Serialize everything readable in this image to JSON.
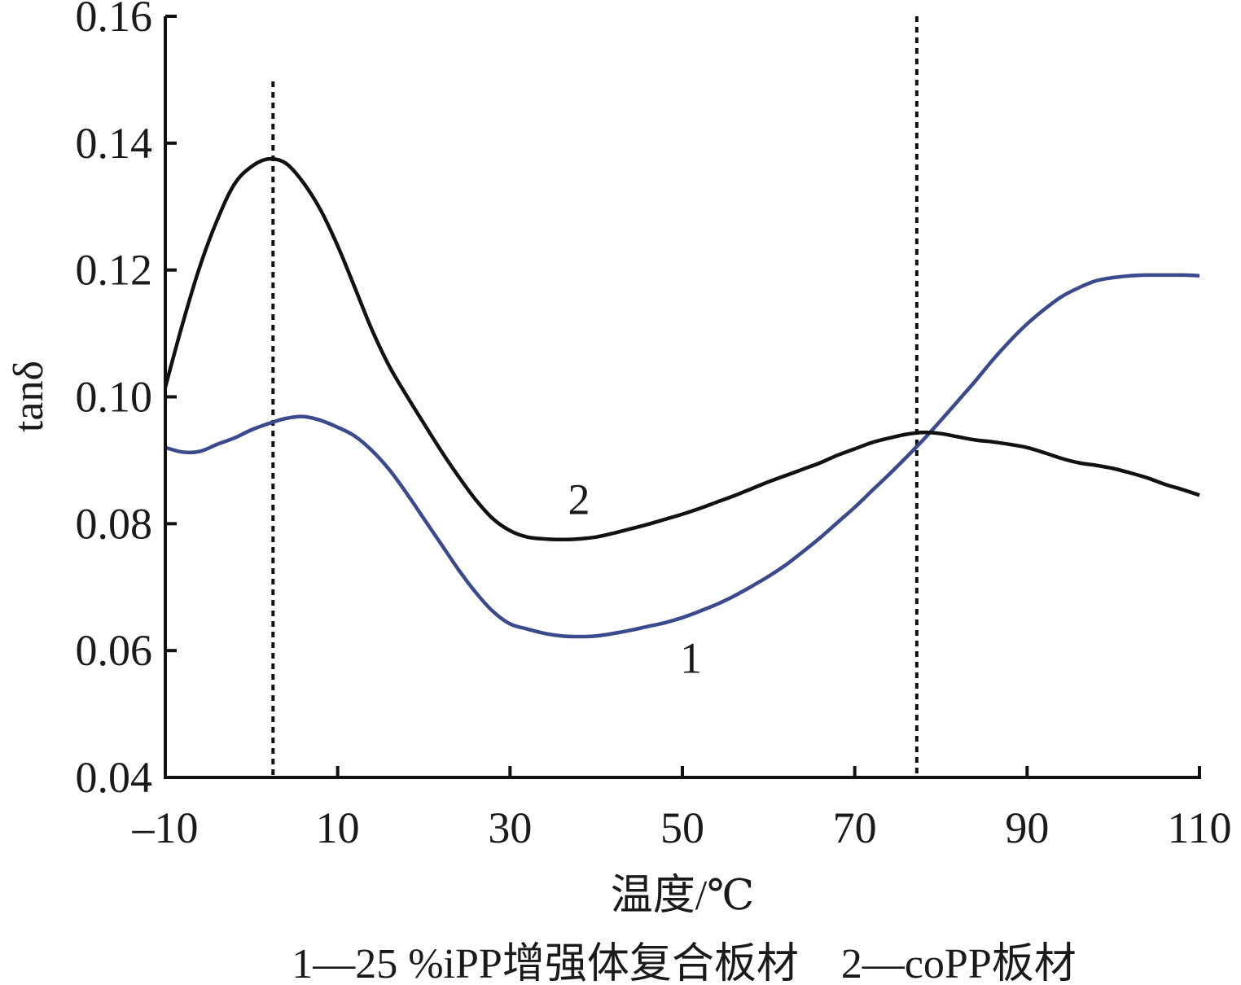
{
  "chart_data": {
    "type": "line",
    "xlabel": "温度/℃",
    "ylabel": "tanδ",
    "xlim": [
      -10,
      110
    ],
    "ylim": [
      0.04,
      0.16
    ],
    "xticks": [
      -10,
      10,
      30,
      50,
      70,
      90,
      110
    ],
    "xtick_labels": [
      "–10",
      "10",
      "30",
      "50",
      "70",
      "90",
      "110"
    ],
    "yticks": [
      0.04,
      0.06,
      0.08,
      0.1,
      0.12,
      0.14,
      0.16
    ],
    "ytick_labels": [
      "0.04",
      "0.06",
      "0.08",
      "0.10",
      "0.12",
      "0.14",
      "0.16"
    ],
    "grid": false,
    "reference_lines_x": [
      2.5,
      77.2
    ],
    "series": [
      {
        "name": "1",
        "color": "#3a4a8c",
        "label_at": [
          51,
          0.0565
        ],
        "points": [
          [
            -10,
            0.092
          ],
          [
            -8,
            0.0913
          ],
          [
            -6,
            0.0914
          ],
          [
            -4,
            0.0925
          ],
          [
            -2,
            0.0935
          ],
          [
            0,
            0.0948
          ],
          [
            2,
            0.0958
          ],
          [
            4,
            0.0966
          ],
          [
            6,
            0.0969
          ],
          [
            8,
            0.0963
          ],
          [
            10,
            0.0952
          ],
          [
            12,
            0.0938
          ],
          [
            14,
            0.0915
          ],
          [
            16,
            0.0885
          ],
          [
            18,
            0.0848
          ],
          [
            20,
            0.0808
          ],
          [
            22,
            0.0768
          ],
          [
            24,
            0.0728
          ],
          [
            26,
            0.0692
          ],
          [
            28,
            0.0662
          ],
          [
            30,
            0.0642
          ],
          [
            32,
            0.0634
          ],
          [
            34,
            0.0627
          ],
          [
            36,
            0.0623
          ],
          [
            38,
            0.0622
          ],
          [
            40,
            0.0623
          ],
          [
            42,
            0.0627
          ],
          [
            44,
            0.0632
          ],
          [
            46,
            0.0638
          ],
          [
            48,
            0.0644
          ],
          [
            50,
            0.0652
          ],
          [
            52,
            0.0662
          ],
          [
            54,
            0.0673
          ],
          [
            56,
            0.0686
          ],
          [
            58,
            0.0701
          ],
          [
            60,
            0.0717
          ],
          [
            62,
            0.0735
          ],
          [
            64,
            0.0756
          ],
          [
            66,
            0.0778
          ],
          [
            68,
            0.0802
          ],
          [
            70,
            0.0826
          ],
          [
            72,
            0.0852
          ],
          [
            74,
            0.0878
          ],
          [
            76,
            0.0905
          ],
          [
            78,
            0.0933
          ],
          [
            80,
            0.0963
          ],
          [
            82,
            0.0994
          ],
          [
            84,
            0.1025
          ],
          [
            86,
            0.1058
          ],
          [
            88,
            0.1088
          ],
          [
            90,
            0.1115
          ],
          [
            92,
            0.1138
          ],
          [
            94,
            0.1158
          ],
          [
            96,
            0.1172
          ],
          [
            98,
            0.1183
          ],
          [
            100,
            0.1188
          ],
          [
            102,
            0.1191
          ],
          [
            104,
            0.1192
          ],
          [
            106,
            0.1192
          ],
          [
            108,
            0.1192
          ],
          [
            110,
            0.1191
          ]
        ]
      },
      {
        "name": "2",
        "color": "#111111",
        "label_at": [
          38,
          0.0815
        ],
        "points": [
          [
            -10,
            0.1015
          ],
          [
            -8,
            0.1115
          ],
          [
            -6,
            0.1205
          ],
          [
            -4,
            0.1278
          ],
          [
            -2,
            0.1335
          ],
          [
            0,
            0.1363
          ],
          [
            2,
            0.1375
          ],
          [
            4,
            0.1368
          ],
          [
            6,
            0.1338
          ],
          [
            8,
            0.1295
          ],
          [
            10,
            0.1238
          ],
          [
            12,
            0.1172
          ],
          [
            14,
            0.1105
          ],
          [
            16,
            0.1048
          ],
          [
            18,
            0.1002
          ],
          [
            20,
            0.0958
          ],
          [
            22,
            0.0915
          ],
          [
            24,
            0.0875
          ],
          [
            26,
            0.0838
          ],
          [
            28,
            0.0808
          ],
          [
            30,
            0.0789
          ],
          [
            32,
            0.0779
          ],
          [
            34,
            0.0776
          ],
          [
            36,
            0.0775
          ],
          [
            38,
            0.0776
          ],
          [
            40,
            0.0779
          ],
          [
            42,
            0.0785
          ],
          [
            44,
            0.0792
          ],
          [
            46,
            0.0799
          ],
          [
            48,
            0.0807
          ],
          [
            50,
            0.0815
          ],
          [
            52,
            0.0824
          ],
          [
            54,
            0.0834
          ],
          [
            56,
            0.0844
          ],
          [
            58,
            0.0855
          ],
          [
            60,
            0.0866
          ],
          [
            62,
            0.0876
          ],
          [
            64,
            0.0886
          ],
          [
            66,
            0.0896
          ],
          [
            68,
            0.0908
          ],
          [
            70,
            0.0918
          ],
          [
            72,
            0.0928
          ],
          [
            74,
            0.0935
          ],
          [
            76,
            0.0941
          ],
          [
            78,
            0.0944
          ],
          [
            80,
            0.0942
          ],
          [
            82,
            0.0937
          ],
          [
            84,
            0.0932
          ],
          [
            86,
            0.0929
          ],
          [
            88,
            0.0925
          ],
          [
            90,
            0.092
          ],
          [
            92,
            0.0912
          ],
          [
            94,
            0.0903
          ],
          [
            96,
            0.0896
          ],
          [
            98,
            0.0892
          ],
          [
            100,
            0.0887
          ],
          [
            102,
            0.088
          ],
          [
            104,
            0.0872
          ],
          [
            106,
            0.0862
          ],
          [
            108,
            0.0854
          ],
          [
            110,
            0.0845
          ]
        ]
      }
    ]
  },
  "caption": "1—25 %iPP增强体复合板材    2—coPP板材"
}
